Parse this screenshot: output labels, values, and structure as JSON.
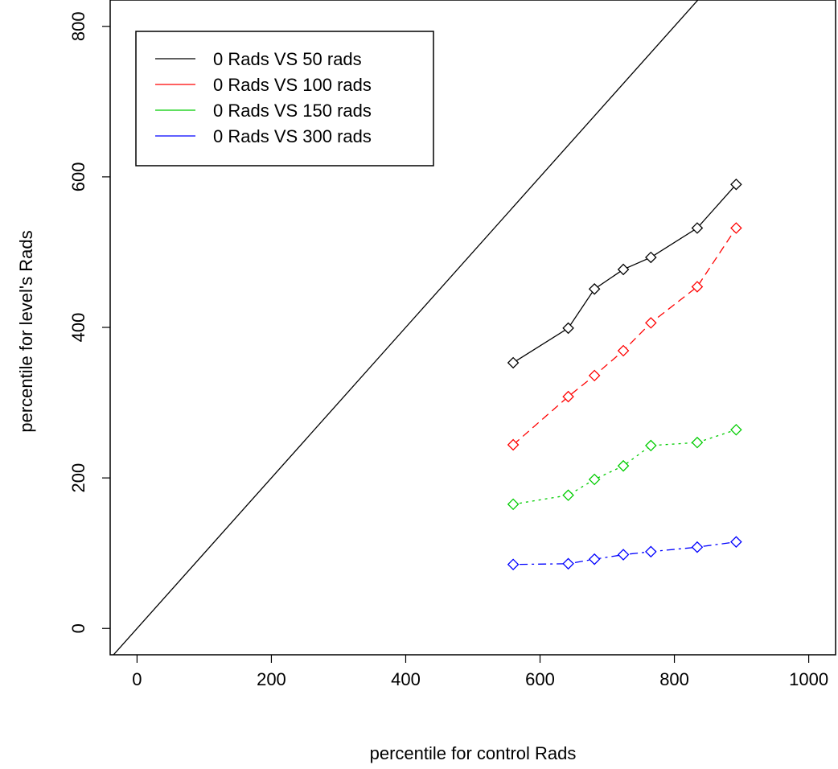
{
  "chart_data": {
    "type": "line",
    "title": "",
    "xlabel": "percentile for control Rads",
    "ylabel": "percentile for level's Rads",
    "xlim": [
      -40,
      1040
    ],
    "ylim": [
      -35,
      835
    ],
    "x_ticks": [
      0,
      200,
      400,
      600,
      800,
      1000
    ],
    "y_ticks": [
      0,
      200,
      400,
      600,
      800
    ],
    "grid": false,
    "legend_position": "top-left",
    "reference_line": {
      "type": "identity",
      "slope": 1,
      "intercept": 0,
      "color": "#000000"
    },
    "x": [
      560,
      642,
      681,
      724,
      765,
      834,
      892
    ],
    "series": [
      {
        "name": "0 Rads VS 50 rads",
        "color": "#000000",
        "dash": "solid",
        "values": [
          353,
          399,
          451,
          477,
          493,
          532,
          590
        ]
      },
      {
        "name": "0 Rads VS 100 rads",
        "color": "#ff0000",
        "dash": "dashed",
        "values": [
          244,
          308,
          336,
          369,
          406,
          454,
          532
        ]
      },
      {
        "name": "0 Rads VS 150 rads",
        "color": "#00cc00",
        "dash": "dotted",
        "values": [
          165,
          177,
          198,
          216,
          243,
          247,
          264
        ]
      },
      {
        "name": "0 Rads VS 300 rads",
        "color": "#0000ff",
        "dash": "dotdash",
        "values": [
          85,
          86,
          92,
          98,
          102,
          108,
          115
        ]
      }
    ]
  }
}
